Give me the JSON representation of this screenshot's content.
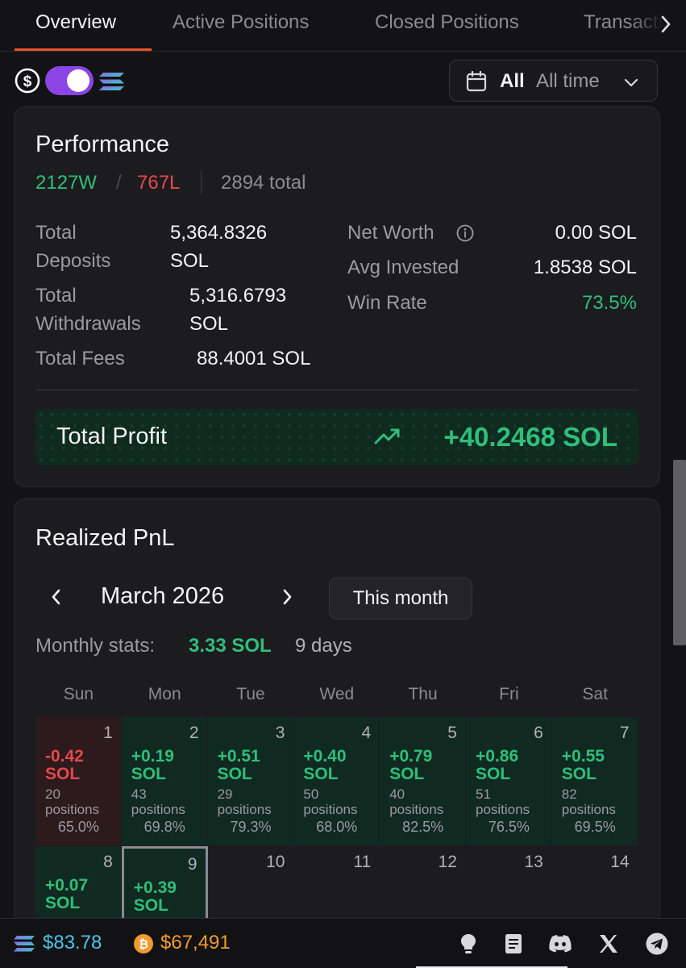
{
  "tabs": [
    {
      "label": "Overview",
      "active": true
    },
    {
      "label": "Active Positions",
      "active": false
    },
    {
      "label": "Closed Positions",
      "active": false
    },
    {
      "label": "Transactions",
      "active": false
    }
  ],
  "toolbar": {
    "currency_toggle": {
      "left_icon": "dollar-icon",
      "right_icon": "solana-icon",
      "selected": "SOL"
    },
    "time_filter": {
      "selected": "All",
      "range": "All time",
      "icon": "calendar-icon"
    }
  },
  "performance": {
    "title": "Performance",
    "wins": "2127W",
    "separator": "/",
    "losses": "767L",
    "total": "2894 total",
    "total_deposits_label_1": "Total",
    "total_deposits_label_2": "Deposits",
    "total_deposits_value_1": "5,364.8326",
    "total_deposits_value_2": "SOL",
    "total_withdrawals_label_1": "Total",
    "total_withdrawals_label_2": "Withdrawals",
    "total_withdrawals_value_1": "5,316.6793",
    "total_withdrawals_value_2": "SOL",
    "total_fees_label": "Total Fees",
    "total_fees_value": "88.4001 SOL",
    "net_worth_label": "Net Worth",
    "net_worth_value": "0.00 SOL",
    "avg_invested_label": "Avg Invested",
    "avg_invested_value": "1.8538 SOL",
    "win_rate_label": "Win Rate",
    "win_rate_value": "73.5%",
    "total_profit_label": "Total Profit",
    "total_profit_value": "+40.2468 SOL"
  },
  "realized_pnl": {
    "title": "Realized PnL",
    "month": "March 2026",
    "this_month_label": "This month",
    "monthly_stats_label": "Monthly stats:",
    "monthly_stats_value": "3.33 SOL",
    "monthly_stats_days": "9 days",
    "weekdays": [
      "Sun",
      "Mon",
      "Tue",
      "Wed",
      "Thu",
      "Fri",
      "Sat"
    ],
    "days": [
      {
        "day": "1",
        "pnl": "-0.42",
        "unit": "SOL",
        "positions": "20",
        "positions_label": "positions",
        "rate": "65.0%",
        "kind": "neg"
      },
      {
        "day": "2",
        "pnl": "+0.19",
        "unit": "SOL",
        "positions": "43",
        "positions_label": "positions",
        "rate": "69.8%",
        "kind": "pos"
      },
      {
        "day": "3",
        "pnl": "+0.51",
        "unit": "SOL",
        "positions": "29",
        "positions_label": "positions",
        "rate": "79.3%",
        "kind": "pos"
      },
      {
        "day": "4",
        "pnl": "+0.40",
        "unit": "SOL",
        "positions": "50",
        "positions_label": "positions",
        "rate": "68.0%",
        "kind": "pos"
      },
      {
        "day": "5",
        "pnl": "+0.79",
        "unit": "SOL",
        "positions": "40",
        "positions_label": "positions",
        "rate": "82.5%",
        "kind": "pos"
      },
      {
        "day": "6",
        "pnl": "+0.86",
        "unit": "SOL",
        "positions": "51",
        "positions_label": "positions",
        "rate": "76.5%",
        "kind": "pos"
      },
      {
        "day": "7",
        "pnl": "+0.55",
        "unit": "SOL",
        "positions": "82",
        "positions_label": "positions",
        "rate": "69.5%",
        "kind": "pos"
      },
      {
        "day": "8",
        "pnl": "+0.07",
        "unit": "SOL",
        "kind": "pos"
      },
      {
        "day": "9",
        "pnl": "+0.39",
        "unit": "SOL",
        "kind": "pos",
        "today": true
      },
      {
        "day": "10",
        "kind": "empty"
      },
      {
        "day": "11",
        "kind": "empty"
      },
      {
        "day": "12",
        "kind": "empty"
      },
      {
        "day": "13",
        "kind": "empty"
      },
      {
        "day": "14",
        "kind": "empty"
      }
    ]
  },
  "footer": {
    "sol_price": "$83.78",
    "btc_price": "$67,491",
    "icons": [
      "lightbulb-icon",
      "docs-icon",
      "discord-icon",
      "x-icon",
      "telegram-icon"
    ]
  },
  "colors": {
    "accent_tab": "#e8552a",
    "positive": "#2fbf7a",
    "negative": "#e5484d",
    "toggle": "#8b45e6",
    "sol_price": "#4dc4e8",
    "btc_price": "#f39a2a"
  }
}
